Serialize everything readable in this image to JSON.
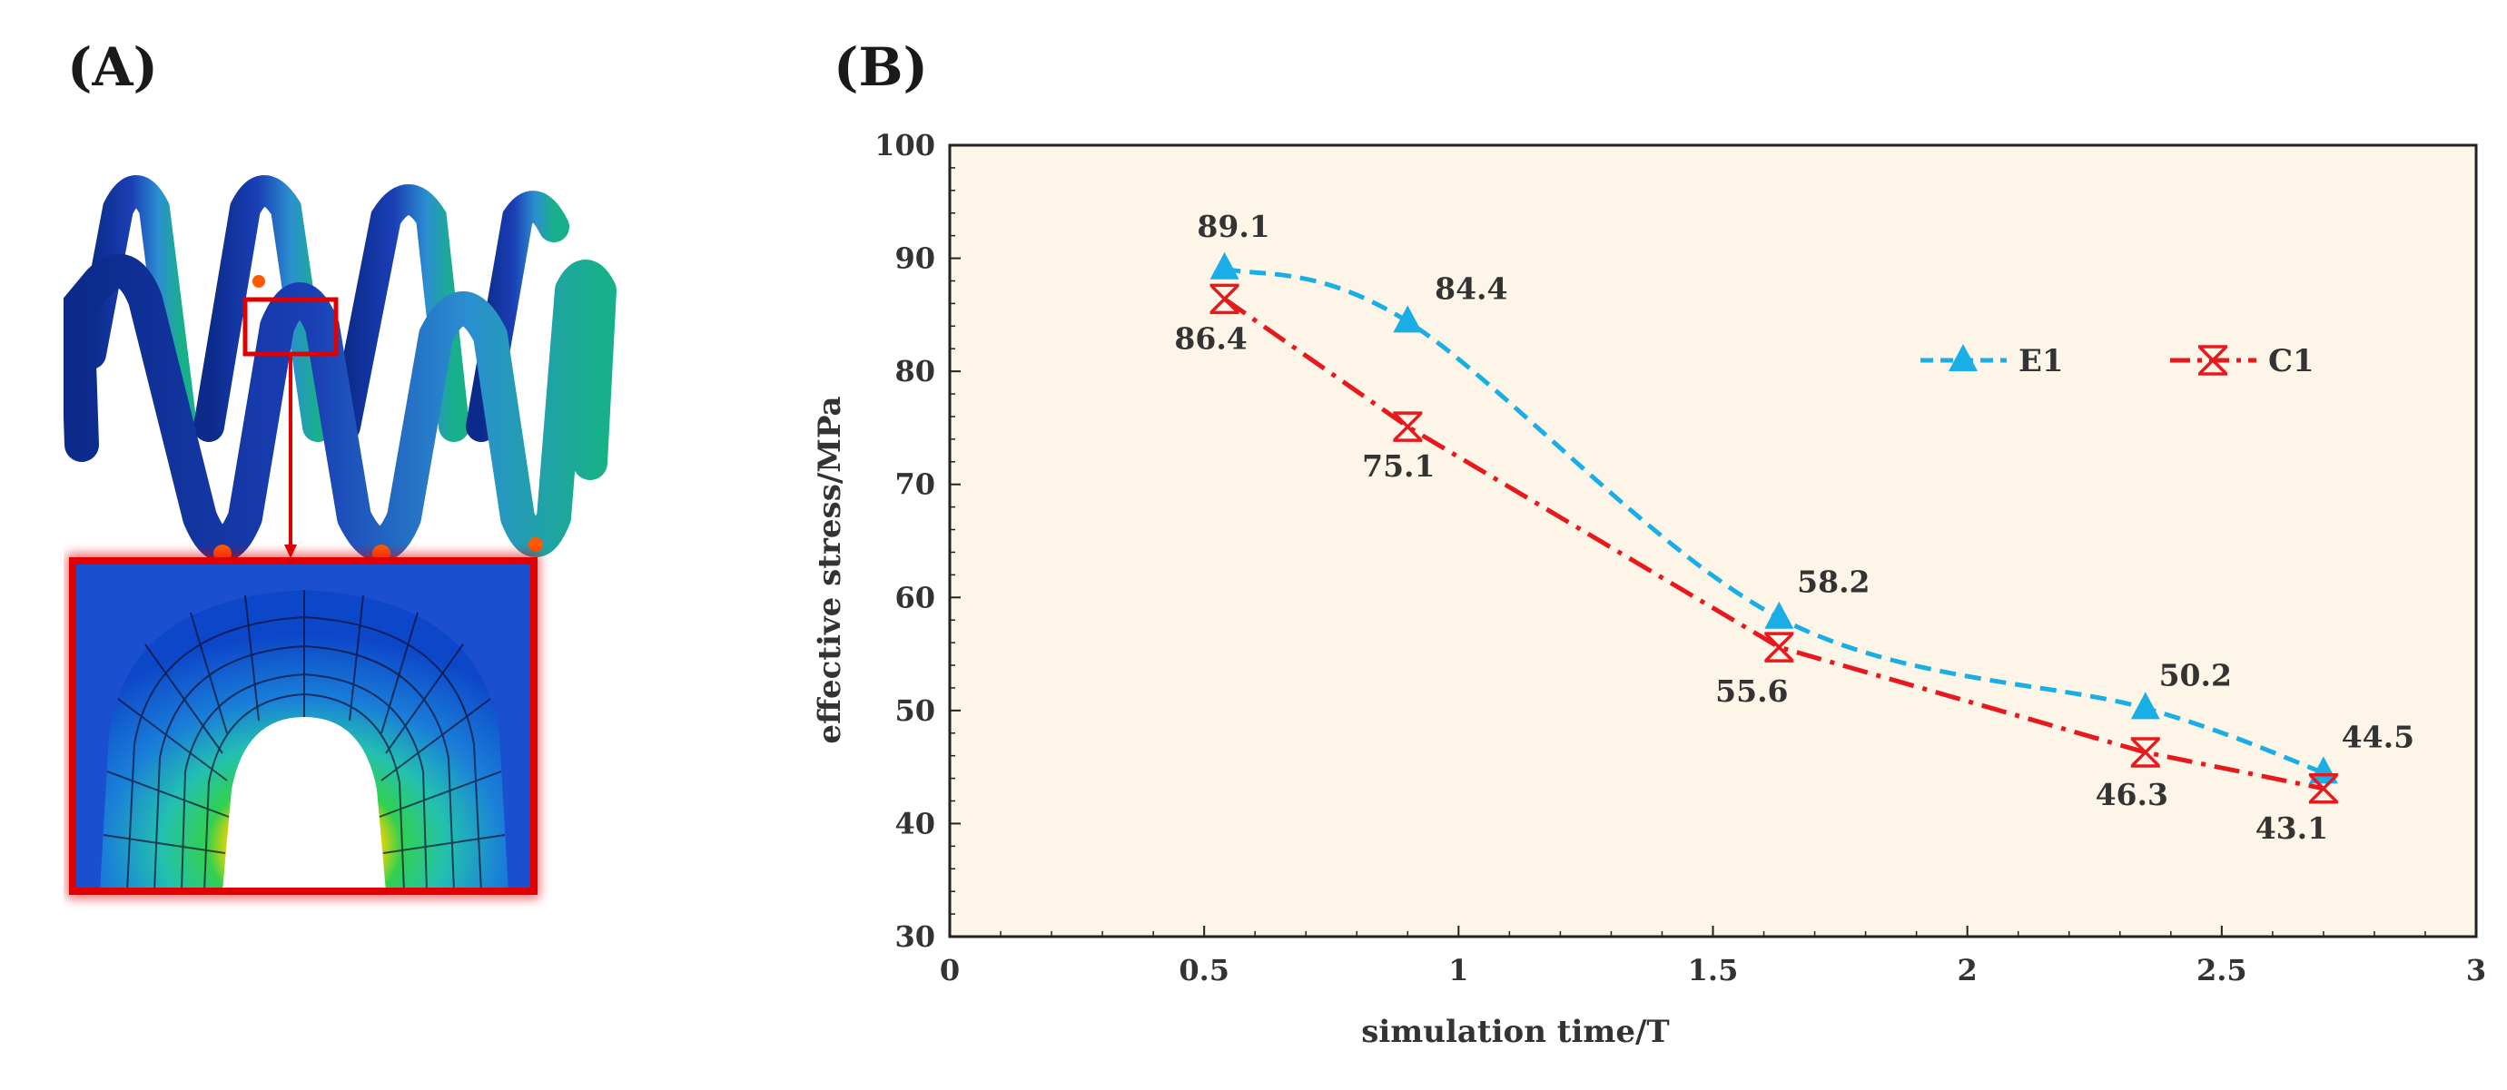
{
  "panels": {
    "a": {
      "label": "(A)",
      "image": "spring-stress-contour"
    },
    "b": {
      "label": "(B)"
    }
  },
  "colors": {
    "E1": "#1aaee6",
    "C1": "#e8191c",
    "plot_bg": "#fdf6e8"
  },
  "chart_data": {
    "type": "line",
    "title": "",
    "xlabel": "simulation time/T",
    "ylabel": "effective stress/MPa",
    "xlim": [
      0,
      3
    ],
    "ylim": [
      30,
      100
    ],
    "xticks": [
      0,
      0.5,
      1,
      1.5,
      2,
      2.5,
      3
    ],
    "yticks": [
      30,
      40,
      50,
      60,
      70,
      80,
      90,
      100
    ],
    "legend_position": "top-right",
    "series": [
      {
        "name": "E1",
        "marker": "triangle",
        "line": "dashed",
        "x": [
          0.54,
          0.9,
          1.63,
          2.35,
          2.7
        ],
        "y": [
          89.1,
          84.4,
          58.2,
          50.2,
          44.5
        ],
        "labels": [
          "89.1",
          "84.4",
          "58.2",
          "50.2",
          "44.5"
        ]
      },
      {
        "name": "C1",
        "marker": "asterisk-x",
        "line": "dash-dot",
        "x": [
          0.54,
          0.9,
          1.63,
          2.35,
          2.7
        ],
        "y": [
          86.4,
          75.1,
          55.6,
          46.3,
          43.1
        ],
        "labels": [
          "86.4",
          "75.1",
          "55.6",
          "46.3",
          "43.1"
        ]
      }
    ]
  }
}
